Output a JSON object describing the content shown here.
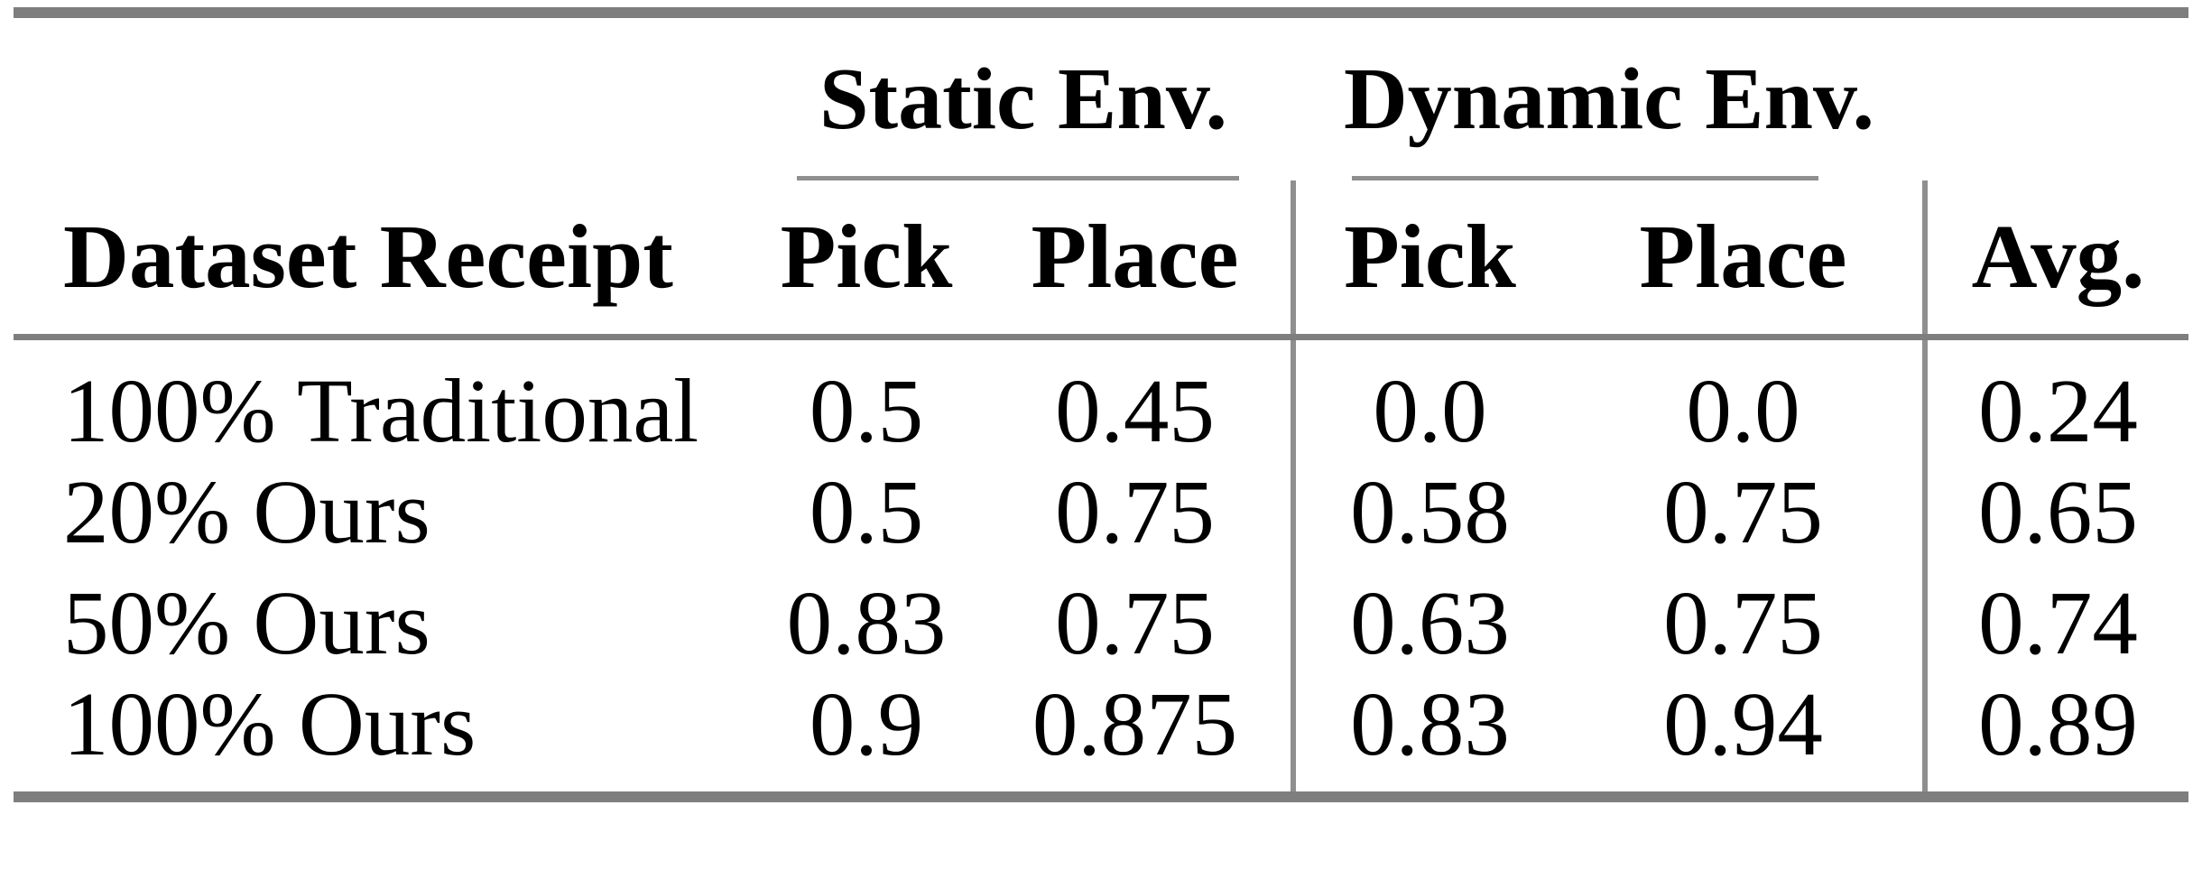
{
  "chart_data": {
    "type": "table",
    "group_headers": [
      "Static Env.",
      "Dynamic Env."
    ],
    "columns": [
      "Dataset Receipt",
      "Pick",
      "Place",
      "Pick",
      "Place",
      "Avg."
    ],
    "rows": [
      [
        "100% Traditional",
        "0.5",
        "0.45",
        "0.0",
        "0.0",
        "0.24"
      ],
      [
        "20% Ours",
        "0.5",
        "0.75",
        "0.58",
        "0.75",
        "0.65"
      ],
      [
        "50% Ours",
        "0.83",
        "0.75",
        "0.63",
        "0.75",
        "0.74"
      ],
      [
        "100% Ours",
        "0.9",
        "0.875",
        "0.83",
        "0.94",
        "0.89"
      ]
    ]
  },
  "colors": {
    "rule_heavy": "#7e7e7e",
    "rule_light": "#8f8f8f",
    "text": "#000000",
    "background": "#ffffff"
  }
}
